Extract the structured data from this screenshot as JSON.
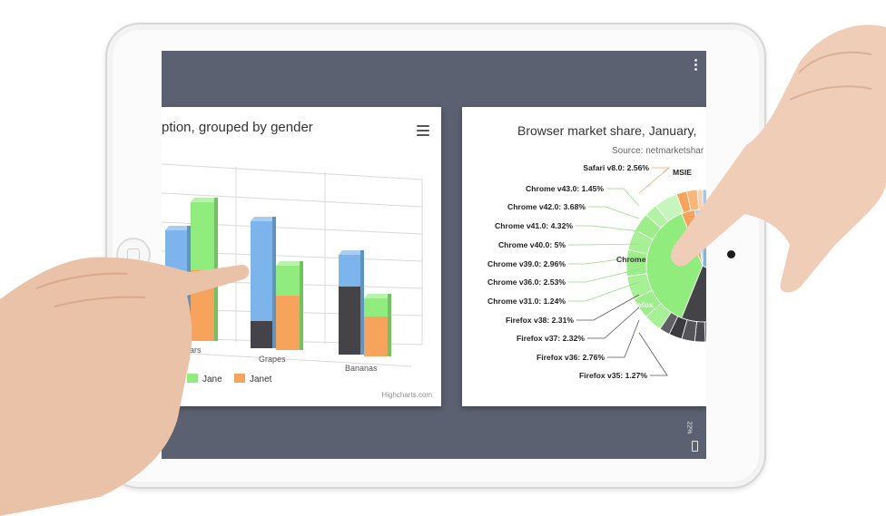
{
  "left_chart": {
    "title": "ption, grouped by gender",
    "categories": [
      "Pears",
      "Grapes",
      "Bananas"
    ],
    "legend": [
      "Jane",
      "Janet"
    ],
    "credits": "Highcharts.com",
    "colors": {
      "dark": "#434348",
      "blue": "#7cb5ec",
      "green": "#90ed7d",
      "orange": "#f7a35c"
    }
  },
  "right_chart": {
    "title": "Browser market share, January,",
    "subtitle": "Source: netmarketshar",
    "inner_labels": [
      "Chrome",
      "Firefox"
    ],
    "msie_label": "MSIE",
    "labels": [
      "Safari v8.0: 2.56%",
      "Chrome v43.0: 1.45%",
      "Chrome v42.0: 3.68%",
      "Chrome v41.0: 4.32%",
      "Chrome v40.0: 5%",
      "Chrome v39.0: 2.96%",
      "Chrome v36.0: 2.53%",
      "Chrome v31.0: 1.24%",
      "Firefox v38: 2.31%",
      "Firefox v37: 2.32%",
      "Firefox v36: 2.76%",
      "Firefox v35: 1.27%"
    ],
    "colors": {
      "chrome": "#90ed7d",
      "firefox": "#434348",
      "msie": "#7cb5ec",
      "safari": "#f7a35c"
    }
  },
  "status_bar": {
    "battery": "22%"
  }
}
